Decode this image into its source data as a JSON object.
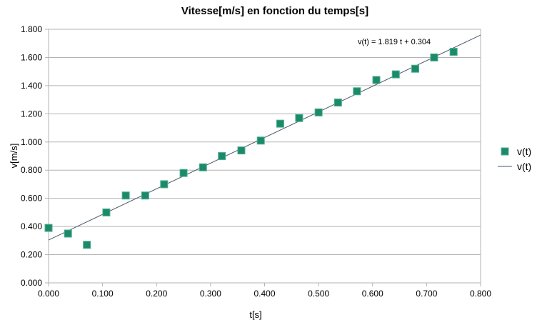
{
  "chart_data": {
    "type": "scatter",
    "title": "Vitesse[m/s] en fonction du temps[s]",
    "xlabel": "t[s]",
    "ylabel": "v[m/s]",
    "xlim": [
      0,
      0.8
    ],
    "ylim": [
      0,
      1.8
    ],
    "x_ticks": [
      "0.000",
      "0.100",
      "0.200",
      "0.300",
      "0.400",
      "0.500",
      "0.600",
      "0.700",
      "0.800"
    ],
    "y_ticks": [
      "0.000",
      "0.200",
      "0.400",
      "0.600",
      "0.800",
      "1.000",
      "1.200",
      "1.400",
      "1.600",
      "1.800"
    ],
    "grid": "horizontal",
    "legend_position": "right",
    "series": [
      {
        "name": "v(t)",
        "kind": "markers",
        "marker": "square",
        "color": "#1b8a6b",
        "x": [
          0.0,
          0.036,
          0.071,
          0.107,
          0.143,
          0.179,
          0.214,
          0.25,
          0.286,
          0.321,
          0.357,
          0.393,
          0.429,
          0.464,
          0.5,
          0.536,
          0.571,
          0.607,
          0.643,
          0.679,
          0.714,
          0.75
        ],
        "y": [
          0.39,
          0.35,
          0.27,
          0.5,
          0.62,
          0.62,
          0.7,
          0.78,
          0.82,
          0.9,
          0.94,
          1.01,
          1.13,
          1.17,
          1.21,
          1.28,
          1.36,
          1.44,
          1.48,
          1.52,
          1.6,
          1.64
        ]
      },
      {
        "name": "v(t)",
        "kind": "trendline",
        "color": "#4a5a6a",
        "slope": 1.819,
        "intercept": 0.304
      }
    ],
    "annotation": "v(t) = 1.819 t + 0.304"
  }
}
